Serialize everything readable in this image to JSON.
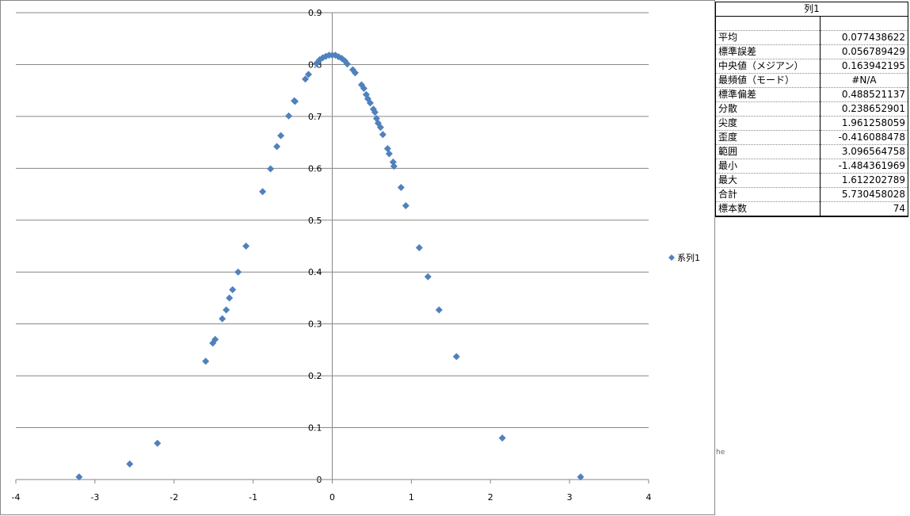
{
  "chart_data": {
    "type": "scatter",
    "xlim": [
      -4,
      4
    ],
    "xticks": [
      -4,
      -3,
      -2,
      -1,
      0,
      1,
      2,
      3,
      4
    ],
    "ylim": [
      0,
      0.9
    ],
    "yticks": [
      0,
      0.1,
      0.2,
      0.3,
      0.4,
      0.5,
      0.6,
      0.7,
      0.8,
      0.9
    ],
    "grid": true,
    "legend": "right",
    "series": [
      {
        "name": "系列1",
        "color": "#4f81bd",
        "x": [
          -3.2,
          -2.56,
          -2.21,
          -1.6,
          -1.51,
          -1.48,
          -1.39,
          -1.34,
          -1.3,
          -1.26,
          -1.19,
          -1.09,
          -0.88,
          -0.78,
          -0.7,
          -0.65,
          -0.55,
          -0.48,
          -0.47,
          -0.34,
          -0.3,
          -0.2,
          -0.16,
          -0.12,
          -0.08,
          -0.04,
          0,
          0.04,
          0.08,
          0.12,
          0.16,
          0.19,
          0.26,
          0.29,
          0.37,
          0.4,
          0.43,
          0.45,
          0.48,
          0.52,
          0.54,
          0.56,
          0.58,
          0.61,
          0.64,
          0.7,
          0.72,
          0.77,
          0.78,
          0.87,
          0.93,
          1.1,
          1.21,
          1.35,
          1.57,
          2.15,
          3.14
        ],
        "values": [
          0.005,
          0.03,
          0.07,
          0.228,
          0.263,
          0.27,
          0.31,
          0.327,
          0.35,
          0.366,
          0.4,
          0.45,
          0.555,
          0.599,
          0.642,
          0.663,
          0.701,
          0.73,
          0.729,
          0.772,
          0.781,
          0.802,
          0.809,
          0.813,
          0.816,
          0.818,
          0.818,
          0.818,
          0.815,
          0.812,
          0.807,
          0.801,
          0.79,
          0.784,
          0.761,
          0.754,
          0.742,
          0.734,
          0.726,
          0.714,
          0.708,
          0.696,
          0.687,
          0.679,
          0.665,
          0.638,
          0.628,
          0.612,
          0.604,
          0.563,
          0.528,
          0.447,
          0.391,
          0.327,
          0.237,
          0.08,
          0.005
        ]
      }
    ]
  },
  "stats_table": {
    "header": "列1",
    "rows": [
      [
        "平均",
        "0.077438622"
      ],
      [
        "標準誤差",
        "0.056789429"
      ],
      [
        "中央値（メジアン）",
        "0.163942195"
      ],
      [
        "最頻値（モード）",
        "#N/A"
      ],
      [
        "標準偏差",
        "0.488521137"
      ],
      [
        "分散",
        "0.238652901"
      ],
      [
        "尖度",
        "1.961258059"
      ],
      [
        "歪度",
        "-0.416088478"
      ],
      [
        "範囲",
        "3.096564758"
      ],
      [
        "最小",
        "-1.484361969"
      ],
      [
        "最大",
        "1.612202789"
      ],
      [
        "合計",
        "5.730458028"
      ],
      [
        "標本数",
        "74"
      ]
    ]
  },
  "fragment_text": "he"
}
